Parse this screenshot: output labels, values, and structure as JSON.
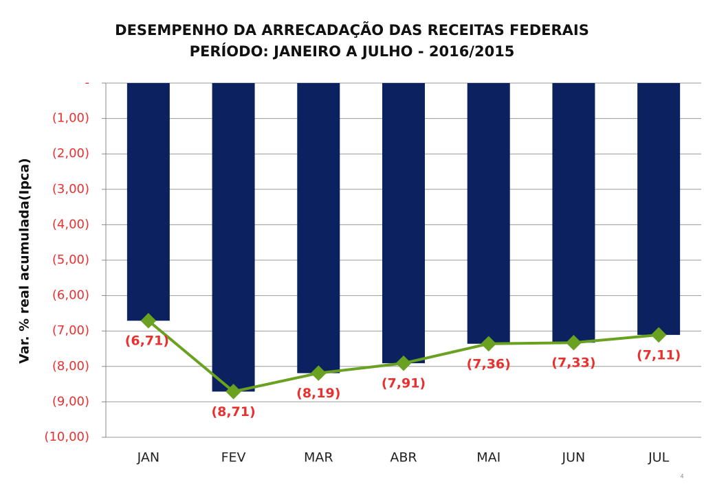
{
  "chart_data": {
    "type": "bar",
    "title": "DESEMPENHO DA ARRECADAÇÃO DAS RECEITAS FEDERAIS",
    "subtitle": "PERÍODO: JANEIRO A JULHO - 2016/2015",
    "y_label": "Var. % real acumulada(Ipca)",
    "categories": [
      "JAN",
      "FEV",
      "MAR",
      "ABR",
      "MAI",
      "JUN",
      "JUL"
    ],
    "series": [
      {
        "type": "bar",
        "color": "#0c2260",
        "values": [
          -6.71,
          -8.71,
          -8.19,
          -7.91,
          -7.36,
          -7.33,
          -7.11
        ]
      },
      {
        "type": "line",
        "color": "#6aa121",
        "values": [
          -6.71,
          -8.71,
          -8.19,
          -7.91,
          -7.36,
          -7.33,
          -7.11
        ],
        "value_labels": [
          "(6,71)",
          "(8,71)",
          "(8,19)",
          "(7,91)",
          "(7,36)",
          "(7,33)",
          "(7,11)"
        ]
      }
    ],
    "ylim": [
      -10,
      0
    ],
    "yticks": [
      {
        "value": 0,
        "label": "-"
      },
      {
        "value": -1,
        "label": "(1,00)"
      },
      {
        "value": -2,
        "label": "(2,00)"
      },
      {
        "value": -3,
        "label": "(3,00)"
      },
      {
        "value": -4,
        "label": "(4,00)"
      },
      {
        "value": -5,
        "label": "(5,00)"
      },
      {
        "value": -6,
        "label": "(6,00)"
      },
      {
        "value": -7,
        "label": "(7,00)"
      },
      {
        "value": -8,
        "label": "(8,00)"
      },
      {
        "value": -9,
        "label": "(9,00)"
      },
      {
        "value": -10,
        "label": "(10,00)"
      }
    ],
    "grid": true
  },
  "page_number": "4"
}
